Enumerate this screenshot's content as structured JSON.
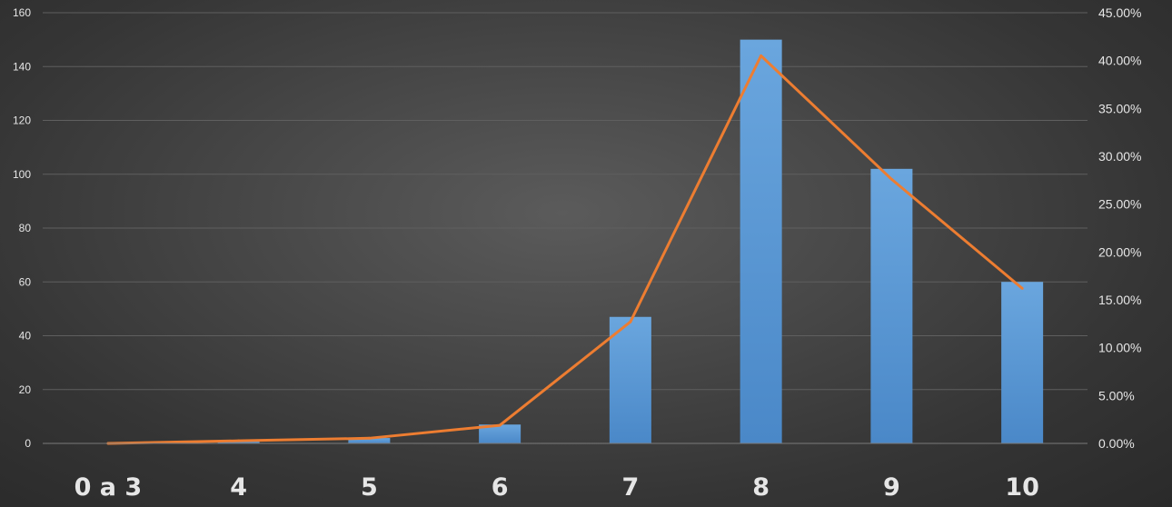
{
  "chart_data": {
    "type": "bar",
    "title": "",
    "xlabel": "",
    "ylabel": "",
    "categories": [
      "0 a 3",
      "4",
      "5",
      "6",
      "7",
      "8",
      "9",
      "10"
    ],
    "series": [
      {
        "type": "bar",
        "axis": "left",
        "values": [
          0,
          1,
          2,
          7,
          47,
          150,
          102,
          60
        ]
      },
      {
        "type": "line",
        "axis": "right",
        "values": [
          0.0,
          0.27,
          0.54,
          1.89,
          12.7,
          40.5,
          27.6,
          16.2
        ]
      }
    ],
    "ylim": [
      0,
      160
    ],
    "y_ticks": [
      "0",
      "20",
      "40",
      "60",
      "80",
      "100",
      "120",
      "140",
      "160"
    ],
    "y2lim": [
      0,
      45
    ],
    "y2_ticks": [
      "0.00%",
      "5.00%",
      "10.00%",
      "15.00%",
      "20.00%",
      "25.00%",
      "30.00%",
      "35.00%",
      "40.00%",
      "45.00%"
    ],
    "grid": true,
    "legend": "none",
    "colors": {
      "bar": "#5b9bd5",
      "line": "#ed7d31",
      "grid": "#5f5f5f",
      "text": "#e6e6e6"
    }
  }
}
